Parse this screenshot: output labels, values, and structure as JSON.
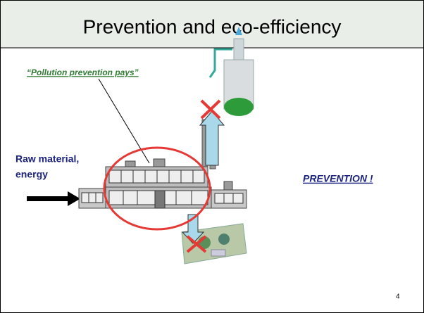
{
  "header": {
    "title": "Prevention and eco-efficiency"
  },
  "callout": "“Pollution prevention pays”",
  "input_label": [
    "Raw material,",
    "energy"
  ],
  "emphasis": "PREVENTION !",
  "page_number": "4"
}
